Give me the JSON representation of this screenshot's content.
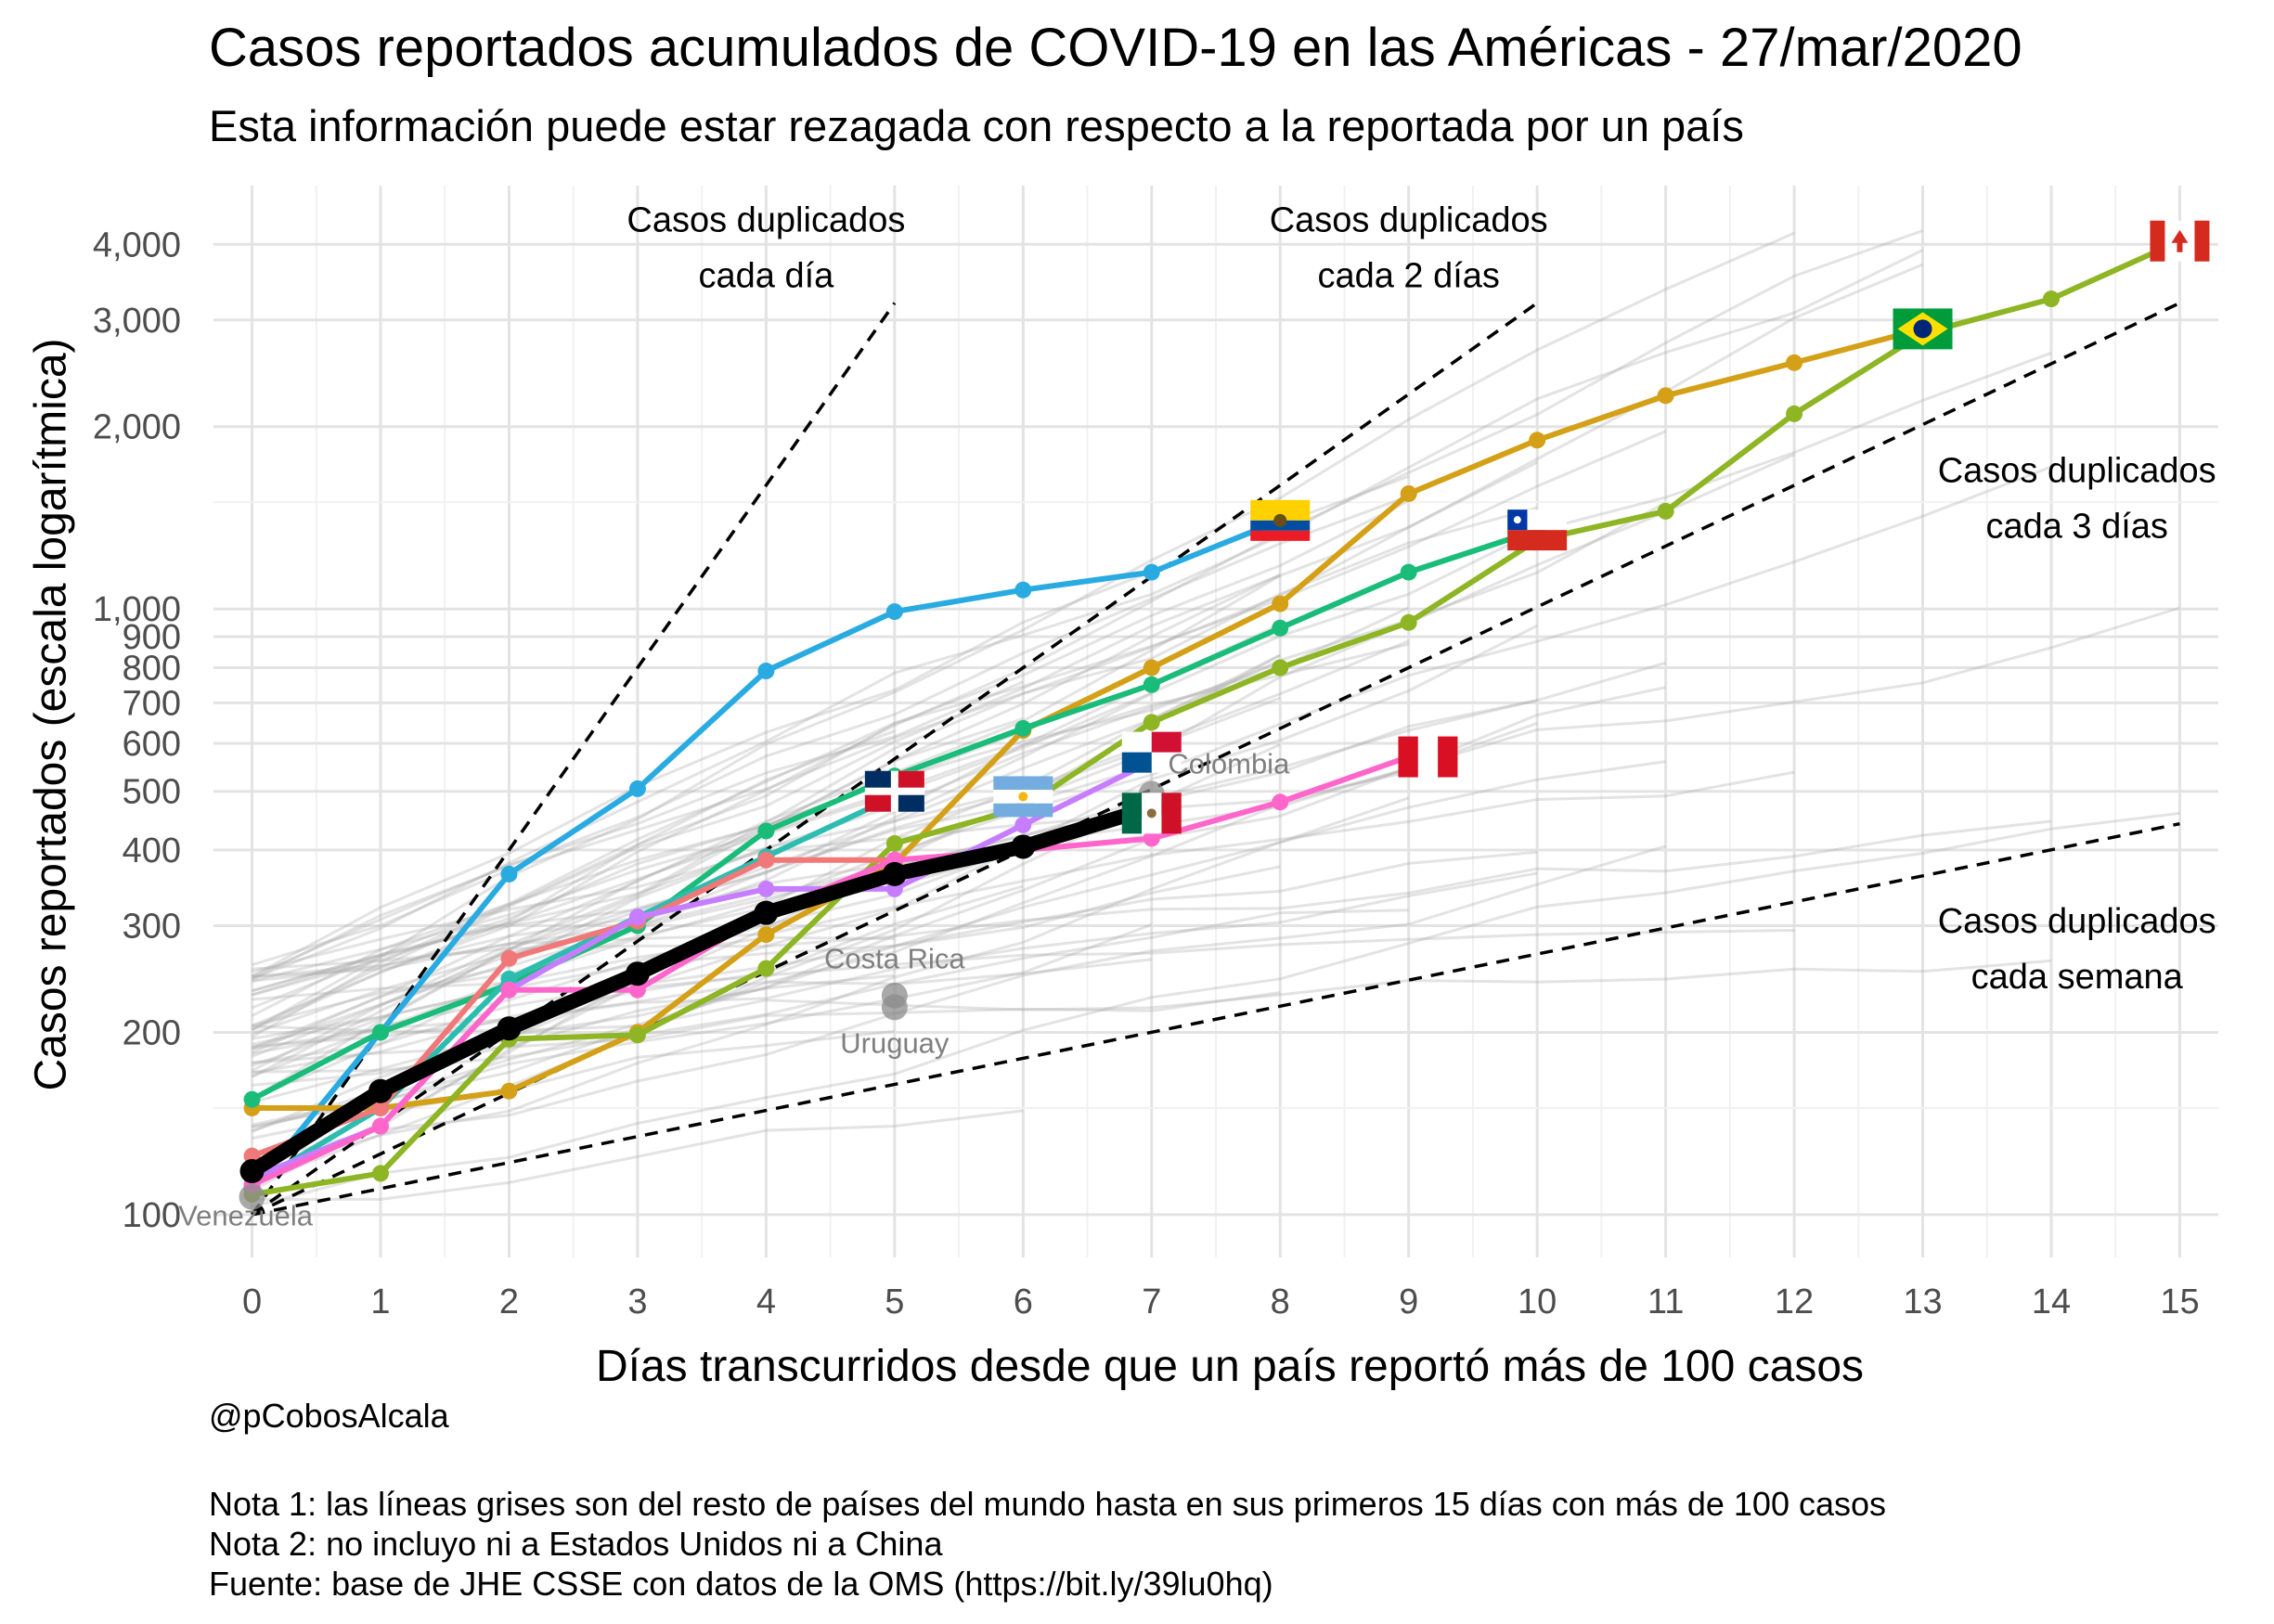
{
  "title": "Casos reportados acumulados de COVID-19 en las Américas - 27/mar/2020",
  "subtitle": "Esta información puede estar rezagada con respecto a la reportada por un país",
  "author": "@pCobosAlcala",
  "notes": [
    "Nota 1: las líneas grises son del resto de países del mundo hasta en sus primeros 15 días con más de 100 casos",
    "Nota 2: no incluyo ni a Estados Unidos ni a China",
    "Fuente: base de JHE CSSE con datos de la OMS (https://bit.ly/39lu0hq)"
  ],
  "chart_data": {
    "type": "line",
    "xlabel": "Días transcurridos desde que un país reportó más de 100 casos",
    "ylabel": "Casos reportados (escala logarítmica)",
    "xlim": [
      -0.3,
      15.3
    ],
    "ylim": [
      85,
      5000
    ],
    "y_scale": "log",
    "grid": true,
    "x_ticks": [
      0,
      1,
      2,
      3,
      4,
      5,
      6,
      7,
      8,
      9,
      10,
      11,
      12,
      13,
      14,
      15
    ],
    "y_ticks": [
      100,
      200,
      300,
      400,
      500,
      600,
      700,
      800,
      900,
      1000,
      2000,
      3000,
      4000
    ],
    "y_tick_labels": [
      "100",
      "200",
      "300",
      "400",
      "500",
      "600",
      "700",
      "800",
      "900",
      "1,000",
      "2,000",
      "3,000",
      "4,000"
    ],
    "reference_lines": [
      {
        "label_lines": [
          "Casos duplicados",
          "cada día"
        ],
        "label_pos": [
          4,
          4200
        ],
        "x": [
          0,
          5
        ],
        "y": [
          100,
          3200
        ]
      },
      {
        "label_lines": [
          "Casos duplicados",
          "cada 2 días"
        ],
        "label_pos": [
          9,
          4200
        ],
        "x": [
          0,
          10
        ],
        "y": [
          100,
          3200
        ]
      },
      {
        "label_lines": [
          "Casos duplicados",
          "cada 3 días"
        ],
        "label_pos": [
          14.2,
          1620
        ],
        "x": [
          0,
          15
        ],
        "y": [
          100,
          3200
        ]
      },
      {
        "label_lines": [
          "Casos duplicados",
          "cada semana"
        ],
        "label_pos": [
          14.2,
          292
        ],
        "x": [
          0,
          15
        ],
        "y": [
          100,
          442
        ]
      }
    ],
    "series": [
      {
        "color": "#29ABE2",
        "x": [
          0,
          1,
          2,
          3,
          4,
          5,
          6,
          7,
          8
        ],
        "y": [
          110,
          200,
          365,
          505,
          790,
          990,
          1075,
          1150,
          1400
        ]
      },
      {
        "color": "#D4A017",
        "x": [
          0,
          1,
          2,
          3,
          4,
          5,
          6,
          7,
          8,
          9,
          10,
          11,
          12,
          13
        ],
        "y": [
          150,
          150,
          160,
          200,
          290,
          380,
          630,
          800,
          1020,
          1550,
          1900,
          2250,
          2550,
          2900
        ]
      },
      {
        "color": "#8DB524",
        "x": [
          0,
          1,
          2,
          3,
          4,
          5,
          6,
          7,
          8,
          9,
          10,
          11,
          12,
          13,
          14,
          15
        ],
        "y": [
          108,
          117,
          195,
          198,
          255,
          410,
          470,
          650,
          800,
          950,
          1300,
          1450,
          2100,
          2850,
          3250,
          4050
        ]
      },
      {
        "color": "#1ABC7A",
        "x": [
          0,
          1,
          2,
          3,
          4,
          5,
          6,
          7,
          8,
          9,
          10
        ],
        "y": [
          155,
          200,
          240,
          300,
          430,
          530,
          635,
          750,
          930,
          1150,
          1350
        ]
      },
      {
        "color": "#2DBDB0",
        "x": [
          0,
          1,
          2,
          3,
          4,
          5
        ],
        "y": [
          112,
          150,
          245,
          310,
          390,
          490
        ]
      },
      {
        "color": "#F07878",
        "x": [
          0,
          1,
          2,
          3,
          4,
          5
        ],
        "y": [
          125,
          150,
          265,
          305,
          385,
          385
        ]
      },
      {
        "color": "#C77DFF",
        "x": [
          0,
          1,
          2,
          3,
          4,
          5,
          6,
          7
        ],
        "y": [
          115,
          140,
          235,
          310,
          345,
          345,
          440,
          560
        ]
      },
      {
        "color": "#FF66CC",
        "x": [
          0,
          1,
          2,
          3,
          4,
          5,
          6,
          7,
          8,
          9
        ],
        "y": [
          112,
          140,
          235,
          235,
          315,
          385,
          400,
          418,
          480,
          570
        ]
      },
      {
        "color": "#000000",
        "x": [
          0,
          1,
          2,
          3,
          4,
          5,
          6,
          7
        ],
        "y": [
          118,
          160,
          203,
          250,
          315,
          365,
          405,
          470
        ]
      }
    ],
    "point_labels": [
      {
        "text": "Colombia",
        "x": 7.6,
        "y": 535
      },
      {
        "text": "Costa Rica",
        "x": 5,
        "y": 255
      },
      {
        "text": "Uruguay",
        "x": 5,
        "y": 185
      },
      {
        "text": "Venezuela",
        "x": -0.05,
        "y": 96
      }
    ],
    "gray_markers": [
      {
        "x": 0,
        "y": 107
      },
      {
        "x": 5,
        "y": 230
      },
      {
        "x": 5,
        "y": 220
      },
      {
        "x": 7,
        "y": 495
      }
    ],
    "flags": [
      {
        "country": "Ecuador",
        "x": 8,
        "y": 1400
      },
      {
        "country": "Chile",
        "x": 10,
        "y": 1350
      },
      {
        "country": "Brazil",
        "x": 13,
        "y": 2900
      },
      {
        "country": "Canada",
        "x": 15,
        "y": 4050
      },
      {
        "country": "Peru",
        "x": 9.15,
        "y": 570
      },
      {
        "country": "Dominican Republic",
        "x": 5,
        "y": 500
      },
      {
        "country": "Argentina",
        "x": 6,
        "y": 490
      },
      {
        "country": "Panama",
        "x": 7,
        "y": 580
      },
      {
        "country": "Mexico",
        "x": 7,
        "y": 460
      }
    ]
  }
}
